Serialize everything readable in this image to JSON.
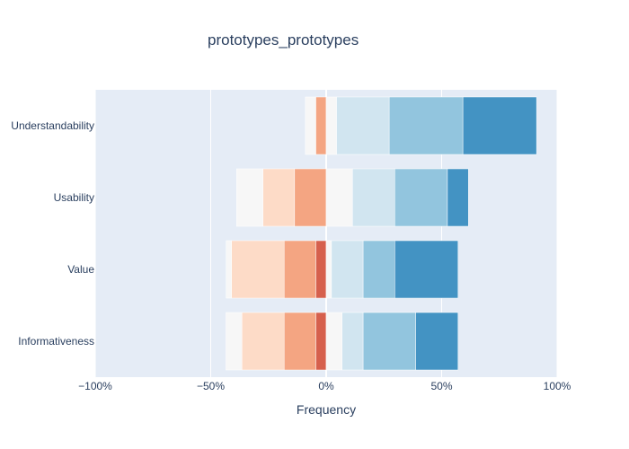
{
  "chart_data": {
    "type": "bar",
    "orientation": "horizontal",
    "barmode": "relative (diverging stacked)",
    "title": "prototypes_prototypes",
    "xlabel": "Frequency",
    "ylabel": "",
    "xlim": [
      -100,
      100
    ],
    "x_tick_labels": [
      "−100%",
      "−50%",
      "0%",
      "50%",
      "100%"
    ],
    "categories": [
      "Understandability",
      "Usability",
      "Value",
      "Informativeness"
    ],
    "grid": true,
    "legend": "none",
    "colors": [
      "#d6604d",
      "#f4a582",
      "#fddbc7",
      "#f7f7f7",
      "#f7f7f7",
      "#d1e5f0",
      "#92c5de",
      "#4393c3"
    ],
    "plot_bg": "#e5ecf6",
    "series": [
      {
        "segment": 1,
        "color": "#d6604d",
        "values": [
          0,
          0,
          -4.5,
          -4.5
        ]
      },
      {
        "segment": 2,
        "color": "#f4a582",
        "values": [
          -4.5,
          -13.7,
          -13.7,
          -13.7
        ]
      },
      {
        "segment": 3,
        "color": "#fddbc7",
        "values": [
          0,
          -13.7,
          -22.8,
          -18.3
        ]
      },
      {
        "segment": 4,
        "color": "#f7f7f7",
        "values": [
          -4.5,
          -11.4,
          -2.3,
          -6.9
        ]
      },
      {
        "segment": 5,
        "color": "#f7f7f7",
        "values": [
          4.5,
          11.4,
          2.3,
          6.9
        ]
      },
      {
        "segment": 6,
        "color": "#d1e5f0",
        "values": [
          22.8,
          18.3,
          13.7,
          9.1
        ]
      },
      {
        "segment": 7,
        "color": "#92c5de",
        "values": [
          31.9,
          22.8,
          13.7,
          22.8
        ]
      },
      {
        "segment": 8,
        "color": "#4393c3",
        "values": [
          31.9,
          9.1,
          27.4,
          18.3
        ]
      }
    ]
  }
}
